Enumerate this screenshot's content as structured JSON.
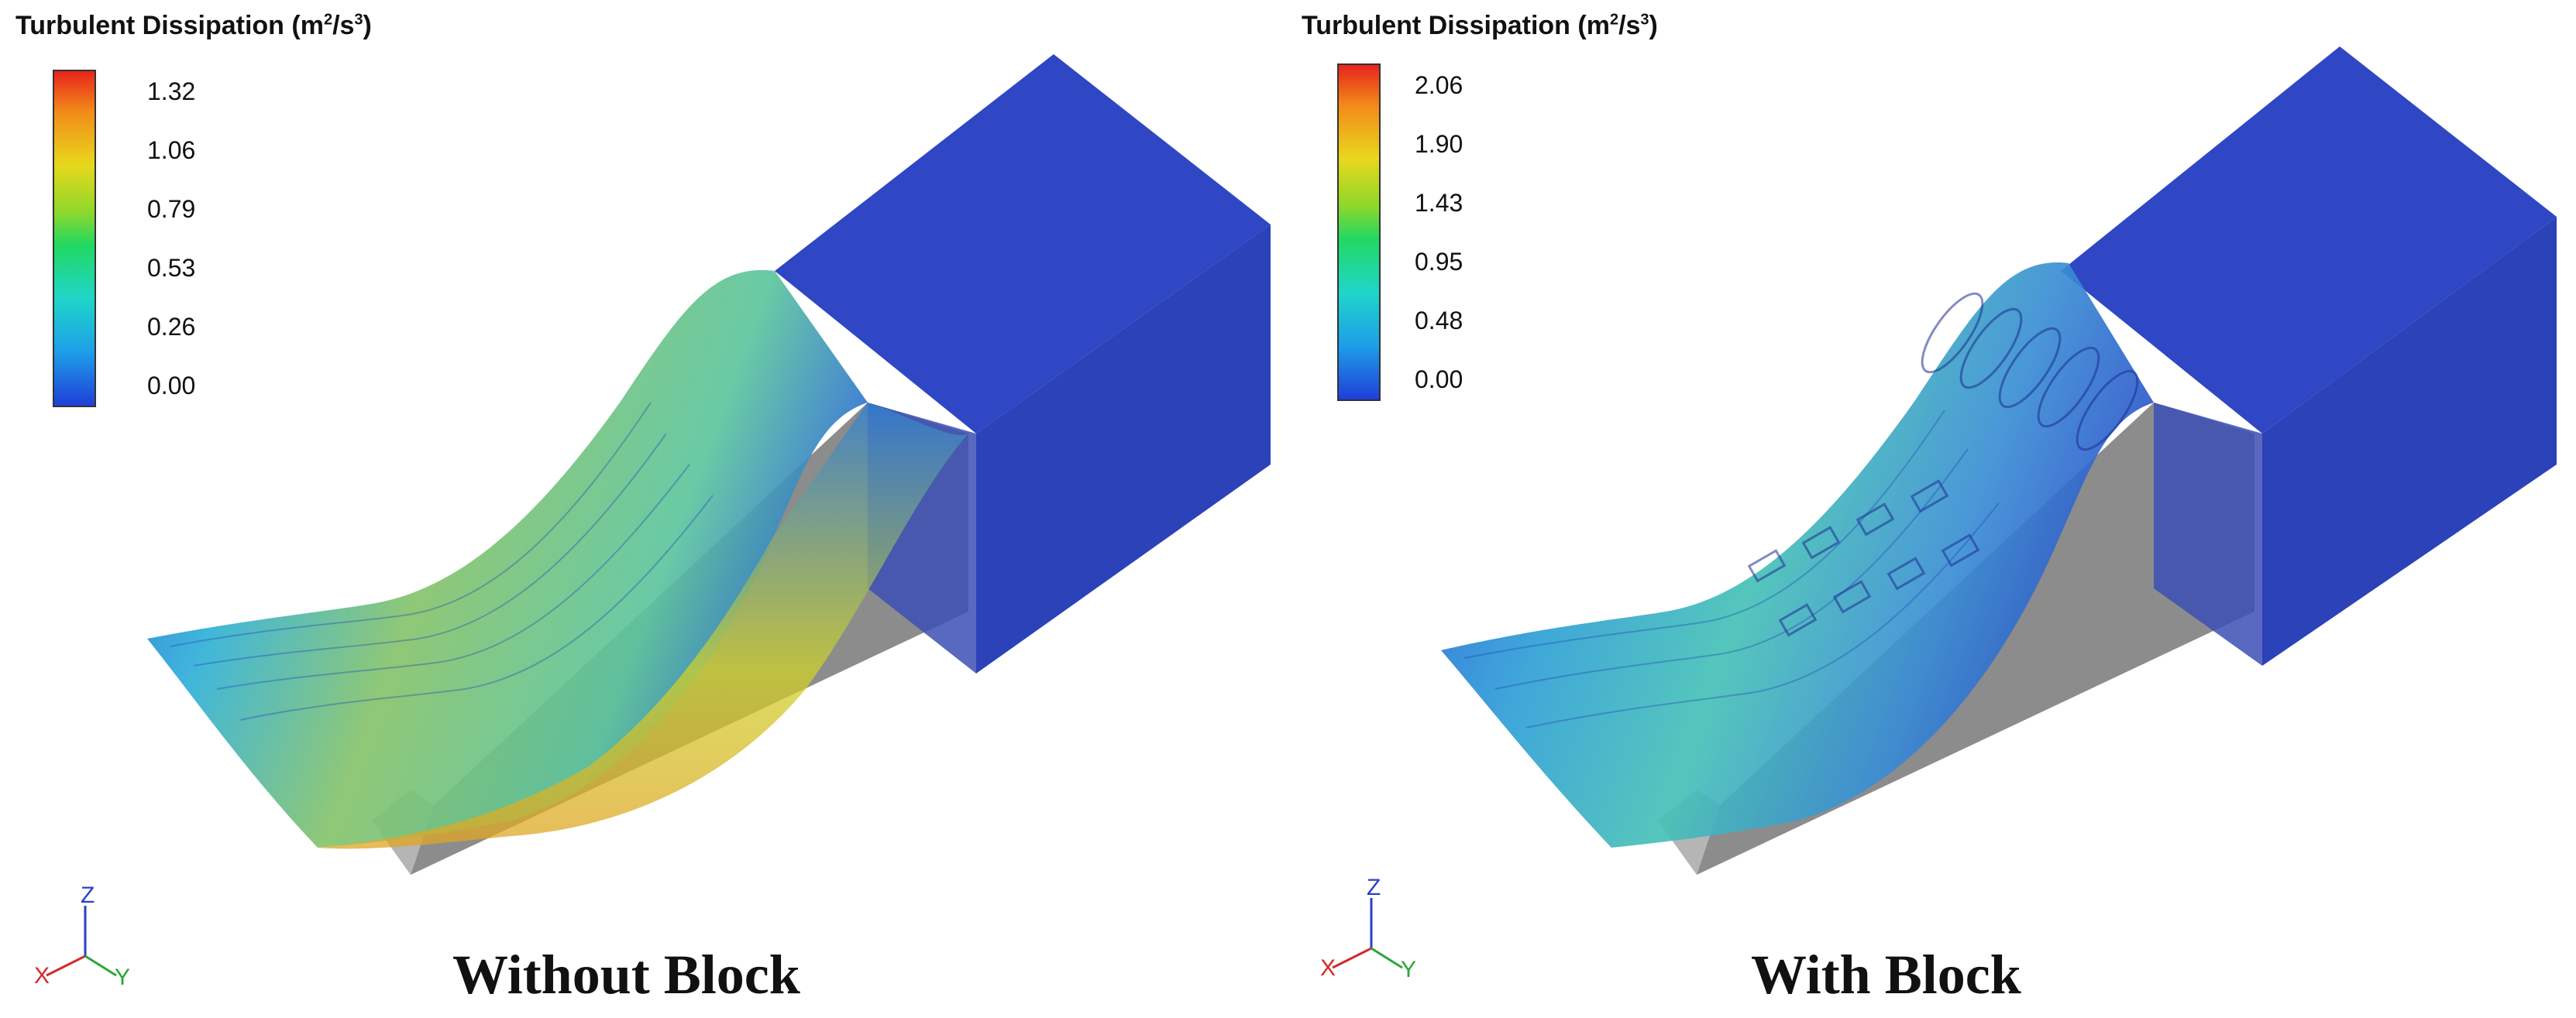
{
  "panels": [
    {
      "legend_title": "Turbulent Dissipation (m",
      "legend_unit_sup1": "2",
      "legend_unit_mid": "/s",
      "legend_unit_sup2": "3",
      "legend_unit_end": ")",
      "ticks": [
        "1.32",
        "1.06",
        "0.79",
        "0.53",
        "0.26",
        "0.00"
      ],
      "caption": "Without Block"
    },
    {
      "legend_title": "Turbulent Dissipation (m",
      "legend_unit_sup1": "2",
      "legend_unit_mid": "/s",
      "legend_unit_sup2": "3",
      "legend_unit_end": ")",
      "ticks": [
        "2.06",
        "1.90",
        "1.43",
        "0.95",
        "0.48",
        "0.00"
      ],
      "caption": "With Block"
    }
  ],
  "axes": {
    "z": "Z",
    "x": "X",
    "y": "Y"
  },
  "colors": {
    "block_blue": "#2744c8",
    "base_gray": "#8a8a8a",
    "colormap_top": "#e8231b",
    "colormap_bottom": "#1f3fd8"
  }
}
